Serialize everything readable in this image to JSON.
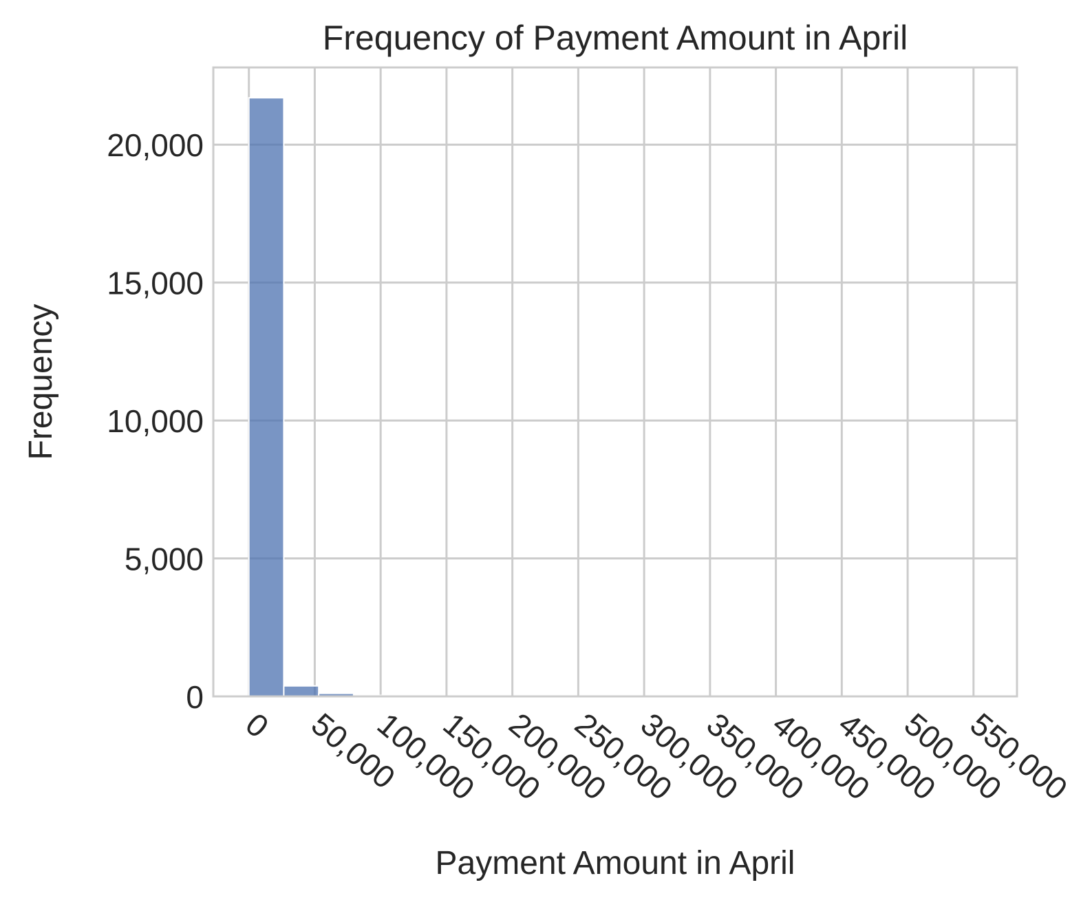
{
  "chart_data": {
    "type": "bar",
    "title": "Frequency of Payment Amount in April",
    "xlabel": "Payment Amount in April",
    "ylabel": "Frequency",
    "xlim": [
      -27000,
      583000
    ],
    "ylim": [
      0,
      22800
    ],
    "x_ticks": [
      0,
      50000,
      100000,
      150000,
      200000,
      250000,
      300000,
      350000,
      400000,
      450000,
      500000,
      550000
    ],
    "x_tick_labels": [
      "0",
      "50,000",
      "100,000",
      "150,000",
      "200,000",
      "250,000",
      "300,000",
      "350,000",
      "400,000",
      "450,000",
      "500,000",
      "550,000"
    ],
    "y_ticks": [
      0,
      5000,
      10000,
      15000,
      20000
    ],
    "y_tick_labels": [
      "0",
      "5,000",
      "10,000",
      "15,000",
      "20,000"
    ],
    "bin_width": 26500,
    "bins": [
      {
        "x0": 0,
        "x1": 26500,
        "count": 21700
      },
      {
        "x0": 26500,
        "x1": 53000,
        "count": 380
      },
      {
        "x0": 53000,
        "x1": 79500,
        "count": 110
      },
      {
        "x0": 79500,
        "x1": 106000,
        "count": 35
      },
      {
        "x0": 106000,
        "x1": 132500,
        "count": 15
      },
      {
        "x0": 132500,
        "x1": 159000,
        "count": 8
      },
      {
        "x0": 159000,
        "x1": 185500,
        "count": 4
      },
      {
        "x0": 185500,
        "x1": 212000,
        "count": 3
      },
      {
        "x0": 212000,
        "x1": 238500,
        "count": 2
      },
      {
        "x0": 238500,
        "x1": 265000,
        "count": 2
      },
      {
        "x0": 265000,
        "x1": 291500,
        "count": 1
      },
      {
        "x0": 291500,
        "x1": 318000,
        "count": 1
      },
      {
        "x0": 318000,
        "x1": 344500,
        "count": 1
      },
      {
        "x0": 344500,
        "x1": 371000,
        "count": 1
      },
      {
        "x0": 371000,
        "x1": 397500,
        "count": 0
      },
      {
        "x0": 397500,
        "x1": 424000,
        "count": 1
      },
      {
        "x0": 424000,
        "x1": 450500,
        "count": 0
      },
      {
        "x0": 450500,
        "x1": 477000,
        "count": 0
      },
      {
        "x0": 477000,
        "x1": 503500,
        "count": 0
      },
      {
        "x0": 503500,
        "x1": 530000,
        "count": 0
      },
      {
        "x0": 530000,
        "x1": 556500,
        "count": 1
      }
    ],
    "grid": true,
    "bar_color": "#4c72b0",
    "bar_opacity": 0.75,
    "grid_color": "#cccccc"
  }
}
